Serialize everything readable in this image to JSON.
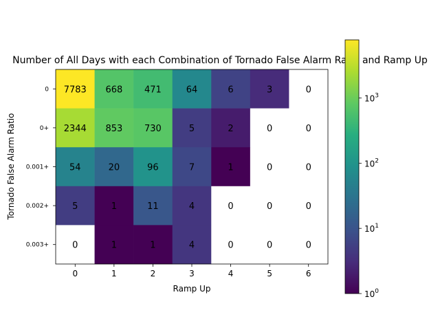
{
  "chart_data": {
    "type": "heatmap",
    "title": "Number of All Days with each Combination of Tornado False Alarm Ratio and Ramp Up",
    "xlabel": "Ramp Up",
    "ylabel": "Tornado False Alarm Ratio",
    "x_categories": [
      "0",
      "1",
      "2",
      "3",
      "4",
      "5",
      "6"
    ],
    "y_categories": [
      "0",
      "0+",
      "0.001+",
      "0.002+",
      "0.003+"
    ],
    "values": [
      [
        7783,
        668,
        471,
        64,
        6,
        3,
        0
      ],
      [
        2344,
        853,
        730,
        5,
        2,
        0,
        0
      ],
      [
        54,
        20,
        96,
        7,
        1,
        0,
        0
      ],
      [
        5,
        1,
        11,
        4,
        0,
        0,
        0
      ],
      [
        0,
        1,
        1,
        4,
        0,
        0,
        0
      ]
    ],
    "colorbar": {
      "scale": "log",
      "colormap": "viridis",
      "min": 1,
      "max": 7783,
      "ticks": [
        {
          "base": "10",
          "exp": "0",
          "value": 1
        },
        {
          "base": "10",
          "exp": "1",
          "value": 10
        },
        {
          "base": "10",
          "exp": "2",
          "value": 100
        },
        {
          "base": "10",
          "exp": "3",
          "value": 1000
        }
      ],
      "zero_color": "#ffffff"
    }
  }
}
